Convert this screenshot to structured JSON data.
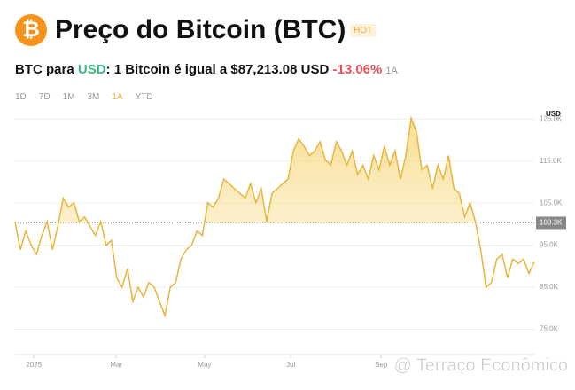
{
  "header": {
    "icon_symbol": "₿",
    "title": "Preço do Bitcoin (BTC)",
    "badge": "HOT",
    "subtitle": {
      "prefix": "BTC para",
      "currency": "USD",
      "text": ": 1 Bitcoin é igual a $87,213.08 USD",
      "change": "-13.06%",
      "period": "1A"
    },
    "tabs": [
      "1D",
      "7D",
      "1M",
      "3M",
      "1A",
      "YTD"
    ],
    "active_tab": 4
  },
  "watermark": "@ Terraço Econômico",
  "chart_data": {
    "type": "line",
    "y_axis_label": "USD",
    "color": "#e9b53a",
    "grid": true,
    "reference_line": {
      "value": 100300,
      "label": "100.3K"
    },
    "values": [
      100600,
      93900,
      98400,
      95000,
      92800,
      97300,
      100600,
      93900,
      99500,
      106200,
      104000,
      105100,
      100600,
      101700,
      99500,
      97300,
      100600,
      95000,
      96100,
      87200,
      85000,
      89400,
      81600,
      85000,
      82700,
      86100,
      85000,
      81600,
      78200,
      85000,
      86100,
      91700,
      93900,
      95000,
      98400,
      97300,
      105100,
      104000,
      106200,
      110700,
      109600,
      108400,
      107300,
      106200,
      109600,
      105100,
      108400,
      100600,
      107300,
      108400,
      109600,
      110700,
      117400,
      120300,
      118500,
      116300,
      117400,
      119600,
      115200,
      114000,
      119600,
      117400,
      114000,
      117400,
      111800,
      114000,
      110700,
      116300,
      112900,
      118500,
      114000,
      117400,
      110700,
      116300,
      125200,
      121900,
      112900,
      114000,
      108400,
      114000,
      110700,
      116300,
      108400,
      107300,
      101700,
      105100,
      100600,
      93900,
      85000,
      86100,
      91700,
      92800,
      87200,
      91700,
      90600,
      91700,
      88300,
      91000
    ],
    "xlim": [
      0,
      97
    ],
    "xticks": [
      {
        "value": 3.5,
        "label": "2025"
      },
      {
        "value": 18.9,
        "label": "Mar"
      },
      {
        "value": 35.4,
        "label": "May"
      },
      {
        "value": 51.5,
        "label": "Jul"
      },
      {
        "value": 68.4,
        "label": "Sep"
      }
    ],
    "ylim": [
      69000,
      128000
    ],
    "yticks": [
      {
        "value": 75000,
        "label": "75.0K"
      },
      {
        "value": 85000,
        "label": "85.0K"
      },
      {
        "value": 95000,
        "label": "95.0K"
      },
      {
        "value": 105000,
        "label": "105.0K"
      },
      {
        "value": 115000,
        "label": "115.0K"
      },
      {
        "value": 125000,
        "label": "125.0K"
      }
    ]
  }
}
